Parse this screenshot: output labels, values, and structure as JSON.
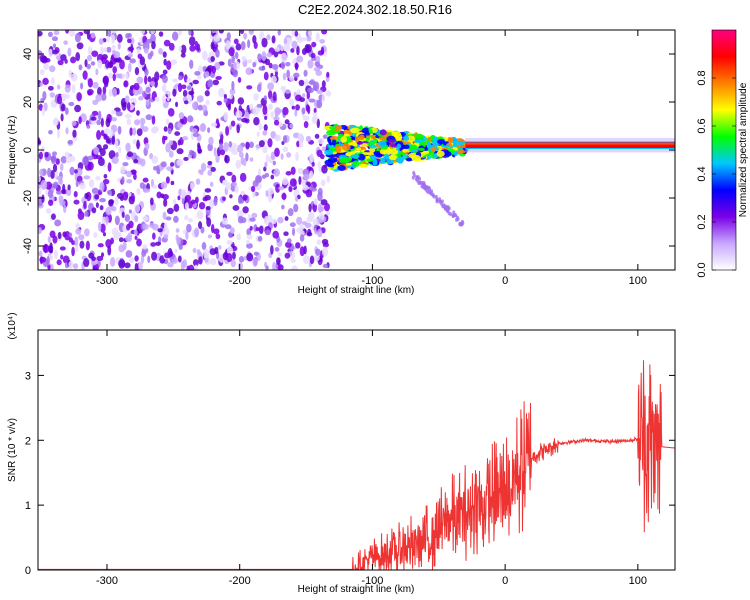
{
  "title": "C2E2.2024.302.18.50.R16",
  "chart_data": [
    {
      "type": "heatmap",
      "xlabel": "Height of straight line (km)",
      "ylabel": "Frequency (Hz)",
      "xlim": [
        -352,
        128
      ],
      "ylim": [
        -50,
        50
      ],
      "xticks": [
        -300,
        -200,
        -100,
        0,
        100
      ],
      "yticks": [
        -40,
        -20,
        0,
        20,
        40
      ],
      "colorbar": {
        "label": "Normalized spectral amplitude",
        "range": [
          0,
          1
        ],
        "ticks": [
          0.0,
          0.2,
          0.4,
          0.6,
          0.8
        ],
        "colors": [
          "#ffffff",
          "#c8a8ff",
          "#7a00e6",
          "#0000ff",
          "#00c8ff",
          "#00ff00",
          "#ffff00",
          "#ff8000",
          "#ff0000",
          "#ff0080"
        ]
      },
      "regions": [
        {
          "desc": "diffuse noise",
          "x_range": [
            -352,
            -133
          ],
          "freq_range": [
            -50,
            50
          ],
          "amplitude": 0.05
        },
        {
          "desc": "spread signal",
          "x_range": [
            -133,
            -30
          ],
          "freq_range": [
            -10,
            14
          ],
          "amplitude": 0.3
        },
        {
          "desc": "tail",
          "x_range": [
            -70,
            -30
          ],
          "freq_range": [
            -32,
            -10
          ],
          "amplitude": 0.05
        },
        {
          "desc": "narrow line",
          "x_range": [
            -30,
            128
          ],
          "freq_range": [
            0,
            4
          ],
          "amplitude": 0.95
        }
      ]
    },
    {
      "type": "line",
      "xlabel": "Height of straight line (km)",
      "ylabel": "SNR (10 * v/v)",
      "ylabel_exponent": "(x10⁴)",
      "xlim": [
        -352,
        128
      ],
      "ylim": [
        0,
        3.7
      ],
      "xticks": [
        -300,
        -200,
        -100,
        0,
        100
      ],
      "yticks": [
        0,
        1,
        2,
        3
      ],
      "color": "#ee3333",
      "series_trend": {
        "x": [
          -352,
          -115,
          -100,
          -80,
          -60,
          -40,
          -20,
          0,
          20,
          40,
          60,
          80,
          95,
          105,
          112,
          118,
          128
        ],
        "y": [
          0.01,
          0.01,
          0.2,
          0.3,
          0.45,
          0.8,
          1.0,
          1.2,
          1.75,
          1.95,
          2.0,
          1.98,
          2.0,
          2.05,
          1.9,
          1.9,
          1.88
        ]
      }
    }
  ]
}
